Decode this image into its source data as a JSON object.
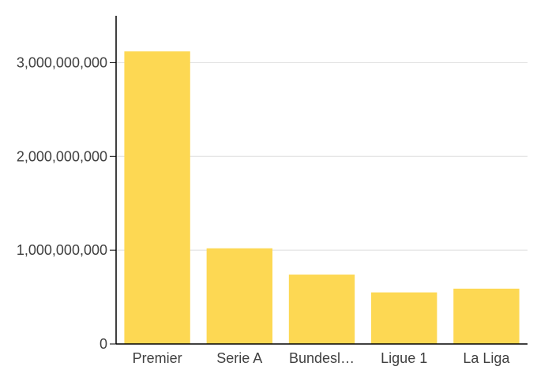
{
  "chart_data": {
    "type": "bar",
    "categories": [
      "Premier League",
      "Serie A",
      "Bundesliga",
      "Ligue 1",
      "La Liga"
    ],
    "category_display": [
      "Premier",
      "Serie A",
      "Bundesl…",
      "Ligue 1",
      "La Liga"
    ],
    "values": [
      3120000000,
      1020000000,
      740000000,
      550000000,
      590000000
    ],
    "yticks": [
      0,
      1000000000,
      2000000000,
      3000000000
    ],
    "ytick_labels": [
      "0",
      "1,000,000,000",
      "2,000,000,000",
      "3,000,000,000"
    ],
    "ylim": [
      0,
      3500000000
    ],
    "title": "",
    "xlabel": "",
    "ylabel": "",
    "grid": true,
    "colors": {
      "bar": "#fdd853",
      "grid": "#dddddd",
      "axis": "#000000",
      "text": "#404040"
    }
  }
}
